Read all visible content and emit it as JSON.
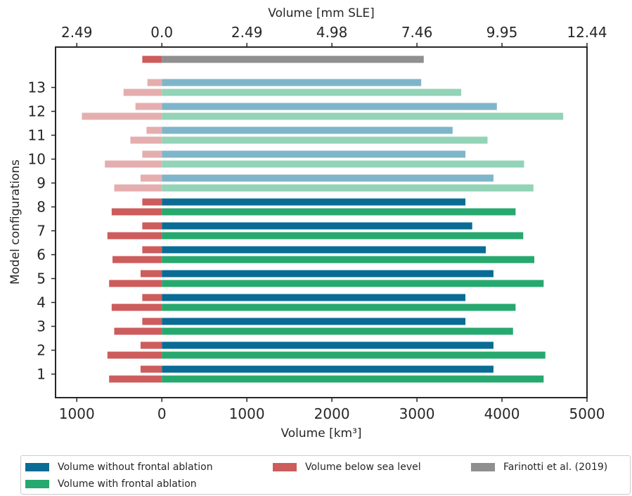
{
  "chart_data": {
    "type": "bar",
    "orientation": "horizontal",
    "ylabel": "Model configurations",
    "xlabel": "Volume [km³]",
    "x2label": "Volume [mm SLE]",
    "categories": [
      "1",
      "2",
      "3",
      "4",
      "5",
      "6",
      "7",
      "8",
      "9",
      "10",
      "11",
      "12",
      "13"
    ],
    "xlim": [
      -1250,
      5000
    ],
    "xticks": [
      -1000,
      0,
      1000,
      2000,
      3000,
      4000,
      5000
    ],
    "xtick_labels": [
      "1000",
      "0",
      "1000",
      "2000",
      "3000",
      "4000",
      "5000"
    ],
    "x2ticks": [
      -1000,
      0,
      1000,
      2000,
      3000,
      4000,
      5000
    ],
    "x2tick_labels": [
      "2.49",
      "0.0",
      "2.49",
      "4.98",
      "7.46",
      "9.95",
      "12.44"
    ],
    "grid": false,
    "series": [
      {
        "name": "Volume without frontal ablation",
        "values": [
          3900,
          3900,
          3570,
          3570,
          3900,
          3810,
          3650,
          3570,
          3900,
          3570,
          3420,
          3940,
          3050
        ],
        "below_sea_level": [
          -250,
          -250,
          -230,
          -230,
          -250,
          -230,
          -230,
          -230,
          -250,
          -230,
          -180,
          -310,
          -170
        ]
      },
      {
        "name": "Volume with frontal ablation",
        "values": [
          4490,
          4510,
          4130,
          4160,
          4490,
          4380,
          4250,
          4160,
          4370,
          4260,
          3830,
          4720,
          3520
        ],
        "below_sea_level": [
          -620,
          -640,
          -560,
          -590,
          -620,
          -580,
          -640,
          -590,
          -560,
          -670,
          -370,
          -940,
          -450
        ]
      },
      {
        "name": "Volume below sea level"
      },
      {
        "name": "Farinotti et al. (2019)",
        "value": 3080,
        "below_sea_level": -230
      }
    ]
  },
  "legend": {
    "items": [
      {
        "label": "Volume without frontal ablation",
        "color": "#0a6c95"
      },
      {
        "label": "Volume below sea level",
        "color": "#cd5c5c"
      },
      {
        "label": "Farinotti et al. (2019)",
        "color": "#8f8f8f"
      },
      {
        "label": "Volume with frontal ablation",
        "color": "#27a86f"
      }
    ]
  },
  "colors": {
    "without_fa": "#0a6c95",
    "with_fa": "#27a86f",
    "below_sea_level": "#cd5c5c",
    "without_fa_light": "#7fb5ca",
    "with_fa_light": "#93d3b7",
    "below_sea_level_light": "#e5aeae",
    "farinotti": "#8f8f8f"
  }
}
